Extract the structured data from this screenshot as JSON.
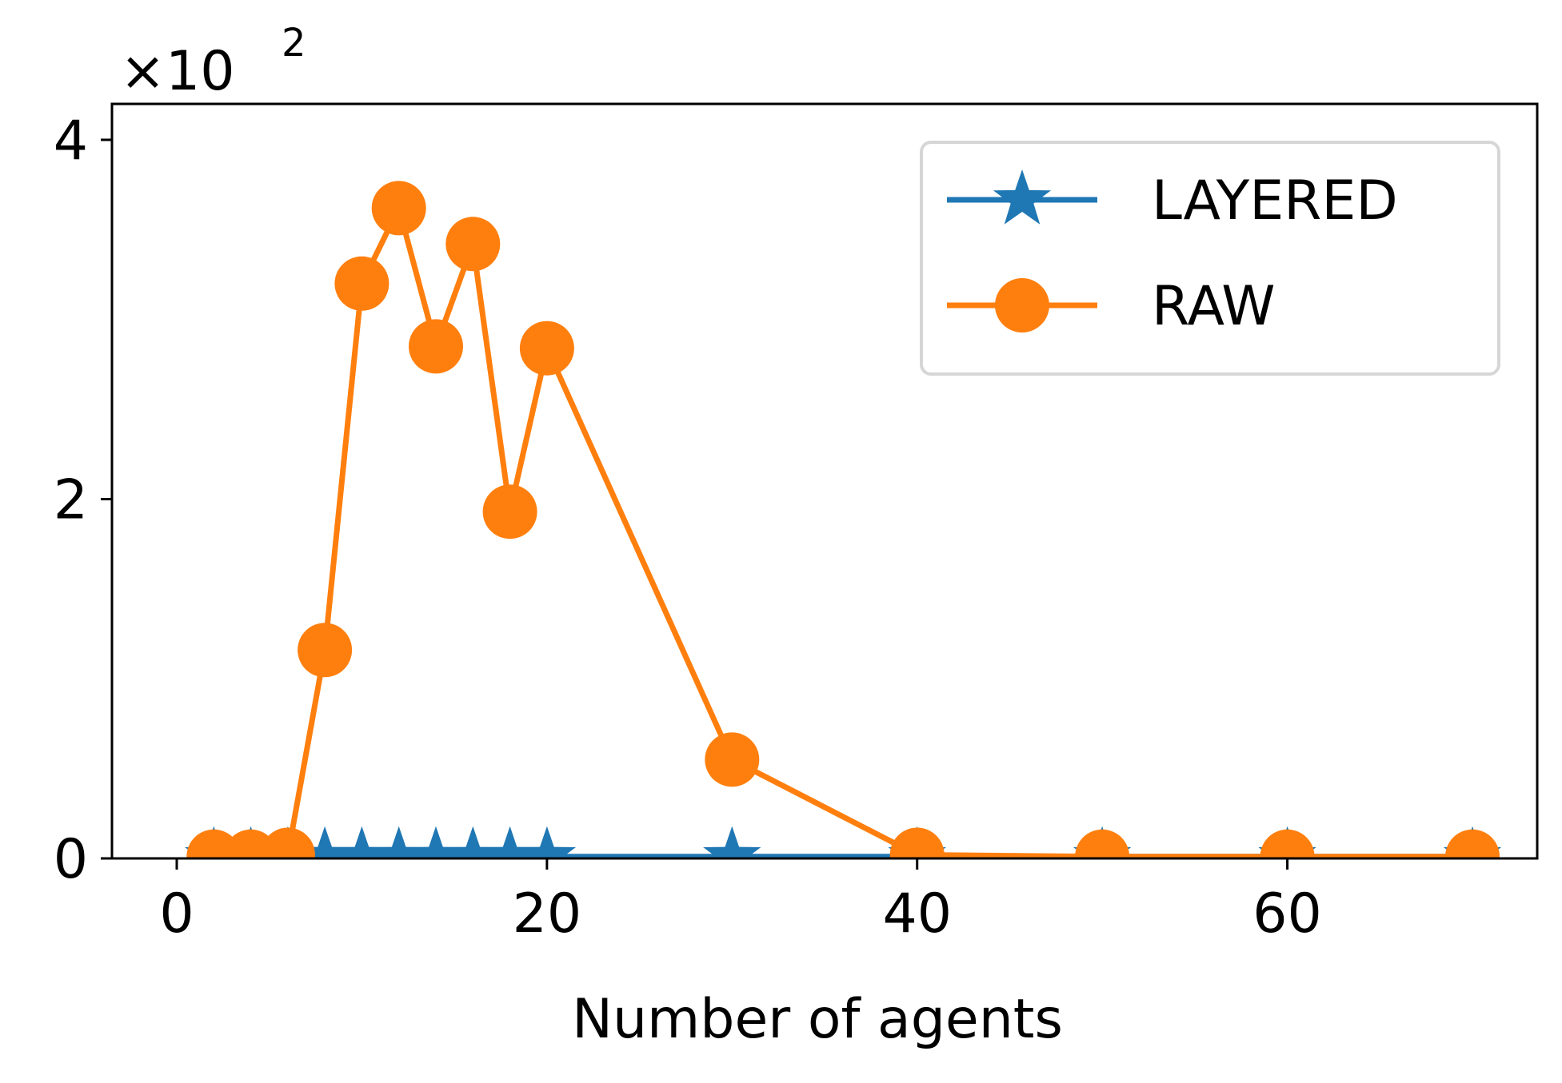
{
  "chart_data": {
    "type": "line",
    "xlabel": "Number of agents",
    "ylabel": "",
    "y_multiplier": {
      "base": "×10",
      "exponent": "2"
    },
    "xlim": [
      -3.5,
      73.5
    ],
    "ylim": [
      0,
      4.2
    ],
    "xticks": [
      0,
      20,
      40,
      60
    ],
    "xtick_labels": [
      "0",
      "20",
      "40",
      "60"
    ],
    "yticks": [
      0,
      2,
      4
    ],
    "ytick_labels": [
      "0",
      "2",
      "4"
    ],
    "grid": false,
    "legend_position": "top-right",
    "series": [
      {
        "name": "LAYERED",
        "color": "#1f77b4",
        "marker": "star",
        "x": [
          2,
          4,
          6,
          8,
          10,
          12,
          14,
          16,
          18,
          20,
          30,
          40,
          50,
          60,
          70
        ],
        "y": [
          0.01,
          0.01,
          0.01,
          0.01,
          0.01,
          0.01,
          0.01,
          0.01,
          0.01,
          0.01,
          0.01,
          0.01,
          0.01,
          0.01,
          0.01
        ]
      },
      {
        "name": "RAW",
        "color": "#ff7f0e",
        "marker": "circle",
        "x": [
          2,
          4,
          6,
          8,
          10,
          12,
          14,
          16,
          18,
          20,
          30,
          40,
          50,
          60,
          70
        ],
        "y": [
          0.01,
          0.01,
          0.02,
          1.16,
          3.2,
          3.62,
          2.85,
          3.42,
          1.93,
          2.84,
          0.55,
          0.02,
          0.01,
          0.01,
          0.01
        ]
      }
    ]
  }
}
